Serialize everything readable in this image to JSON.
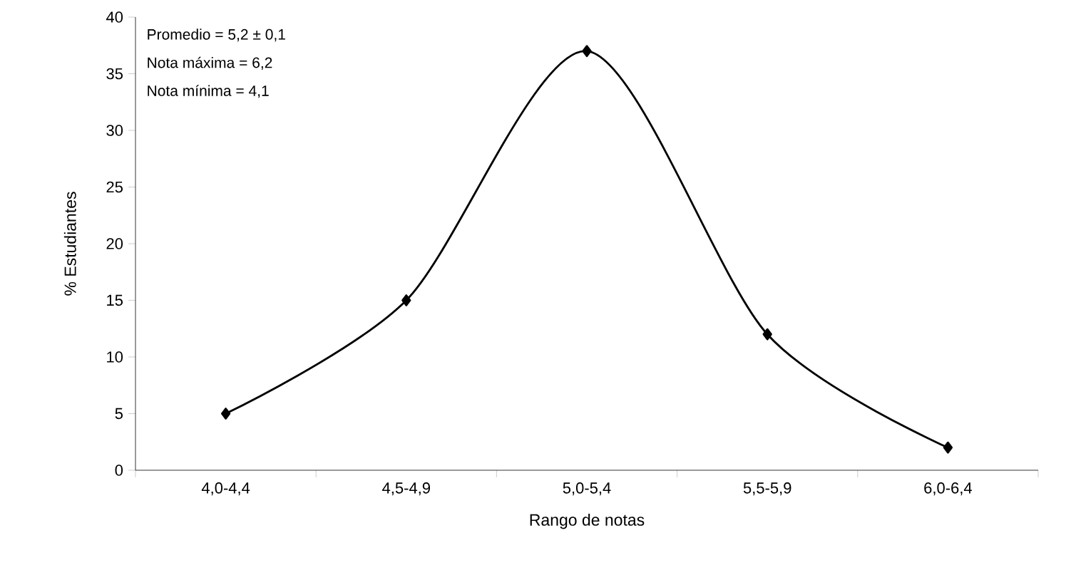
{
  "chart_data": {
    "type": "line",
    "xlabel": "Rango de notas",
    "ylabel": "% Estudiantes",
    "categories": [
      "4,0-4,4",
      "4,5-4,9",
      "5,0-5,4",
      "5,5-5,9",
      "6,0-6,4"
    ],
    "values": [
      5,
      15,
      37,
      12,
      2
    ],
    "color": "#000000",
    "marker": "diamond",
    "line_style": "solid",
    "ylim": [
      0,
      40
    ],
    "yticks": [
      0,
      5,
      10,
      15,
      20,
      25,
      30,
      35,
      40
    ],
    "annotations": [
      "Promedio = 5,2 ± 0,1",
      "Nota máxima = 6,2",
      "Nota mínima = 4,1"
    ]
  }
}
